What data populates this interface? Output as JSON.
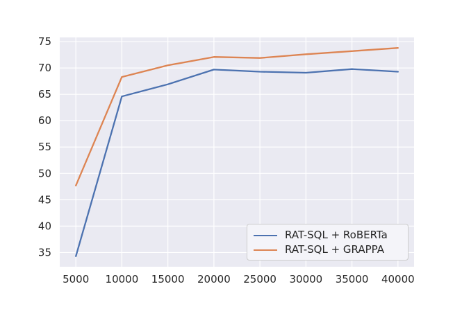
{
  "chart_data": {
    "type": "line",
    "title": "",
    "xlabel": "",
    "ylabel": "",
    "x": [
      5000,
      10000,
      15000,
      20000,
      25000,
      30000,
      35000,
      40000
    ],
    "series": [
      {
        "name": "RAT-SQL + RoBERTa",
        "color": "#4C72B0",
        "values": [
          34.3,
          64.6,
          66.9,
          69.7,
          69.3,
          69.1,
          69.8,
          69.3
        ]
      },
      {
        "name": "RAT-SQL + GRAPPA",
        "color": "#DD8452",
        "values": [
          47.7,
          68.3,
          70.5,
          72.1,
          71.9,
          72.6,
          73.2,
          73.8
        ]
      }
    ],
    "x_ticks": [
      "5000",
      "10000",
      "15000",
      "20000",
      "25000",
      "30000",
      "35000",
      "40000"
    ],
    "y_ticks": [
      "35",
      "40",
      "45",
      "50",
      "55",
      "60",
      "65",
      "70",
      "75"
    ],
    "x_tick_values": [
      5000,
      10000,
      15000,
      20000,
      25000,
      30000,
      35000,
      40000
    ],
    "y_tick_values": [
      35,
      40,
      45,
      50,
      55,
      60,
      65,
      70,
      75
    ],
    "xlim": [
      3250,
      41750
    ],
    "ylim": [
      32.3,
      75.8
    ],
    "grid": true,
    "legend_position": "lower right"
  },
  "style": {
    "figure_bg": "#FFFFFF",
    "plot_bg": "#EAEAF2",
    "grid_color": "#FFFFFF",
    "tick_label_color": "#262626",
    "legend_bg": "#F4F4F9",
    "legend_border": "#CCCCCC",
    "legend_text_color": "#262626"
  }
}
